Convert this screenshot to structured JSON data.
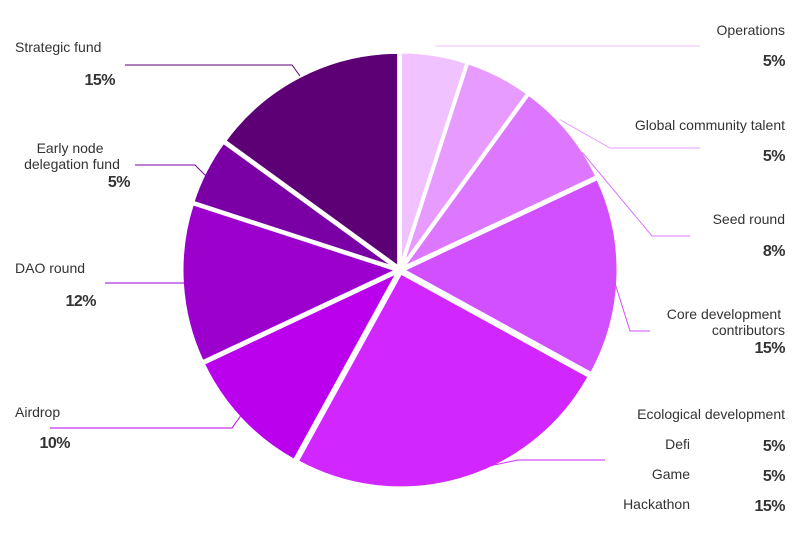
{
  "chart_data": {
    "type": "pie",
    "slices": [
      {
        "name": "Operations",
        "value": 5,
        "value_label": "5%",
        "color": "#f0c2ff"
      },
      {
        "name": "Global community talent",
        "value": 5,
        "value_label": "5%",
        "color": "#e89bff"
      },
      {
        "name": "Seed round",
        "value": 8,
        "value_label": "8%",
        "color": "#dd77ff"
      },
      {
        "name": "Core development contributors",
        "value": 15,
        "value_label": "15%",
        "color": "#d24fff"
      },
      {
        "name": "Ecological development",
        "color": "#d226ff",
        "parts": [
          {
            "name": "Defi",
            "value": 5,
            "value_label": "5%"
          },
          {
            "name": "Game",
            "value": 5,
            "value_label": "5%"
          },
          {
            "name": "Hackathon",
            "value": 15,
            "value_label": "15%"
          }
        ]
      },
      {
        "name": "Airdrop",
        "value": 10,
        "value_label": "10%",
        "color": "#bb00ee"
      },
      {
        "name": "DAO round",
        "value": 12,
        "value_label": "12%",
        "color": "#9b00cc"
      },
      {
        "name": "Early node delegation fund",
        "value": 5,
        "value_label": "5%",
        "color": "#7a00a6"
      },
      {
        "name": "Strategic fund",
        "value": 15,
        "value_label": "15%",
        "color": "#5e0075"
      }
    ]
  }
}
